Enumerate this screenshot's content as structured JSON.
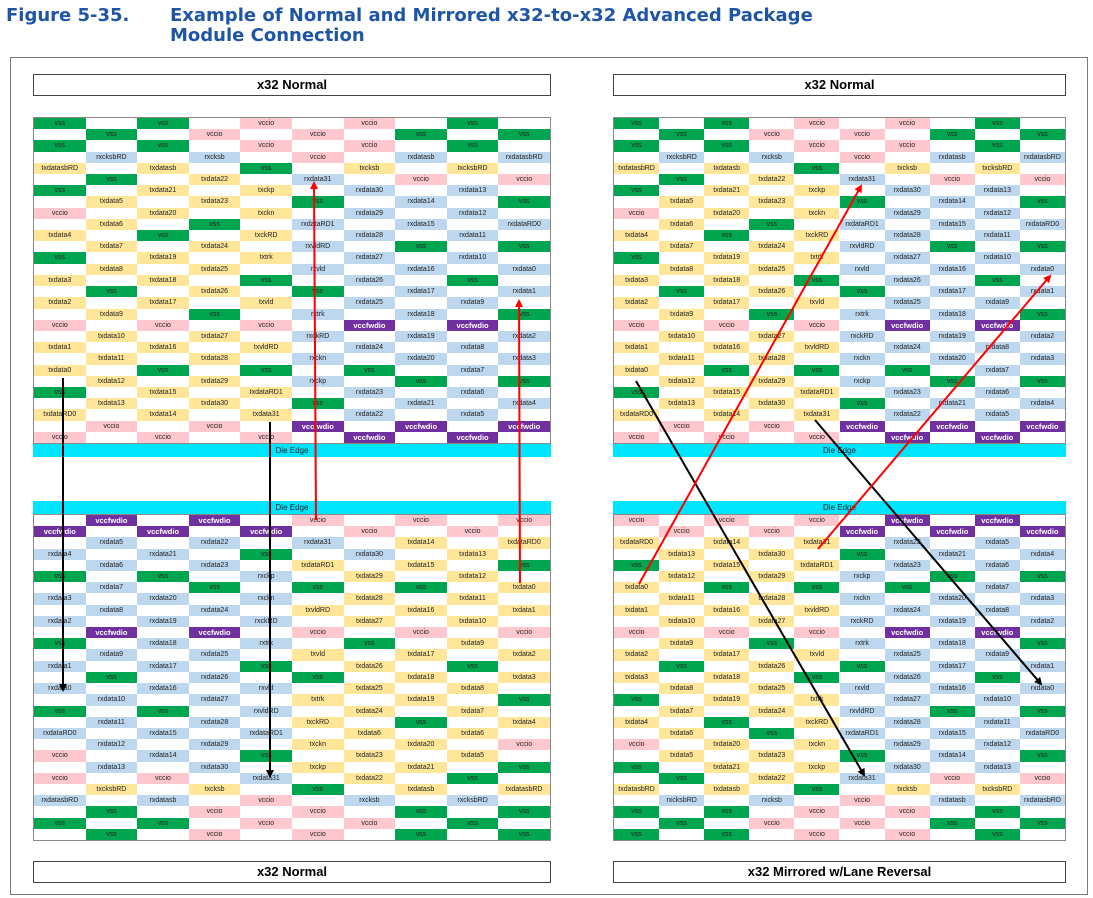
{
  "figure": {
    "number": "Figure 5-35.",
    "title_line1": "Example of Normal and Mirrored x32-to-x32 Advanced Package",
    "title_line2": "Module Connection"
  },
  "panels": {
    "top_left_label": "x32 Normal",
    "top_right_label": "x32 Normal",
    "bottom_left_label": "x32 Normal",
    "bottom_right_label": "x32 Mirrored w/Lane Reversal",
    "die_edge_label": "Die Edge"
  },
  "colors": {
    "vss": "#00a550",
    "vccio": "#ffc7ce",
    "tx": "#ffe699",
    "rx": "#bdd7ee",
    "vccfwdio": "#7030a0",
    "empty": "#ffffff",
    "die_edge": "#00e5ff",
    "arrow_red": "#ff0000",
    "arrow_black": "#000000"
  },
  "grid_top": [
    [
      "vss",
      "",
      "vss",
      "",
      "vccio",
      "",
      "vccio",
      "",
      "vss",
      ""
    ],
    [
      "",
      "vss",
      "",
      "vccio",
      "",
      "vccio",
      "",
      "vss",
      "",
      "vss"
    ],
    [
      "vss",
      "",
      "vss",
      "",
      "vccio",
      "",
      "vccio",
      "",
      "vss",
      ""
    ],
    [
      "",
      "rxcksbRD",
      "",
      "rxcksb",
      "",
      "vccio",
      "",
      "rxdatasb",
      "",
      "rxdatasbRD"
    ],
    [
      "txdatasbRD",
      "",
      "txdatasb",
      "",
      "vss",
      "",
      "txcksb",
      "",
      "txcksbRD",
      ""
    ],
    [
      "",
      "vss",
      "",
      "txdata22",
      "",
      "rxdata31",
      "",
      "vccio",
      "",
      "vccio"
    ],
    [
      "vss",
      "",
      "txdata21",
      "",
      "txckp",
      "",
      "rxdata30",
      "",
      "rxdata13",
      ""
    ],
    [
      "",
      "txdata5",
      "",
      "txdata23",
      "",
      "vss",
      "",
      "rxdata14",
      "",
      "vss"
    ],
    [
      "vccio",
      "",
      "txdata20",
      "",
      "txckn",
      "",
      "rxdata29",
      "",
      "rxdata12",
      ""
    ],
    [
      "",
      "txdata6",
      "",
      "vss",
      "",
      "rxdataRD1",
      "",
      "rxdata15",
      "",
      "rxdataRD0"
    ],
    [
      "txdata4",
      "",
      "vss",
      "",
      "txckRD",
      "",
      "rxdata28",
      "",
      "rxdata11",
      ""
    ],
    [
      "",
      "txdata7",
      "",
      "txdata24",
      "",
      "rxvldRD",
      "",
      "vss",
      "",
      "vss"
    ],
    [
      "vss",
      "",
      "txdata19",
      "",
      "txtrk",
      "",
      "rxdata27",
      "",
      "rxdata10",
      ""
    ],
    [
      "",
      "txdata8",
      "",
      "txdata25",
      "",
      "rxvld",
      "",
      "rxdata16",
      "",
      "rxdata0"
    ],
    [
      "txdata3",
      "",
      "txdata18",
      "",
      "vss",
      "",
      "rxdata26",
      "",
      "vss",
      ""
    ],
    [
      "",
      "vss",
      "",
      "txdata26",
      "",
      "vss",
      "",
      "rxdata17",
      "",
      "rxdata1"
    ],
    [
      "txdata2",
      "",
      "txdata17",
      "",
      "txvld",
      "",
      "rxdata25",
      "",
      "rxdata9",
      ""
    ],
    [
      "",
      "txdata9",
      "",
      "vss",
      "",
      "rxtrk",
      "",
      "rxdata18",
      "",
      "vss"
    ],
    [
      "vccio",
      "",
      "vccio",
      "",
      "vccio",
      "",
      "vccfwdio",
      "",
      "vccfwdio",
      ""
    ],
    [
      "",
      "txdata10",
      "",
      "txdata27",
      "",
      "rxckRD",
      "",
      "rxdata19",
      "",
      "rxdata2"
    ],
    [
      "txdata1",
      "",
      "txdata16",
      "",
      "txvldRD",
      "",
      "rxdata24",
      "",
      "rxdata8",
      ""
    ],
    [
      "",
      "txdata11",
      "",
      "txdata28",
      "",
      "rxckn",
      "",
      "rxdata20",
      "",
      "rxdata3"
    ],
    [
      "txdata0",
      "",
      "vss",
      "",
      "vss",
      "",
      "vss",
      "",
      "rxdata7",
      ""
    ],
    [
      "",
      "txdata12",
      "",
      "txdata29",
      "",
      "rxckp",
      "",
      "vss",
      "",
      "vss"
    ],
    [
      "vss",
      "",
      "txdata15",
      "",
      "txdataRD1",
      "",
      "rxdata23",
      "",
      "rxdata6",
      ""
    ],
    [
      "",
      "txdata13",
      "",
      "txdata30",
      "",
      "vss",
      "",
      "rxdata21",
      "",
      "rxdata4"
    ],
    [
      "txdataRD0",
      "",
      "txdata14",
      "",
      "txdata31",
      "",
      "rxdata22",
      "",
      "rxdata5",
      ""
    ],
    [
      "",
      "vccio",
      "",
      "vccio",
      "",
      "vccfwdio",
      "",
      "vccfwdio",
      "",
      "vccfwdio"
    ],
    [
      "vccio",
      "",
      "vccio",
      "",
      "vccio",
      "",
      "vccfwdio",
      "",
      "vccfwdio",
      ""
    ]
  ],
  "grid_bottom_left": [
    [
      "",
      "vccfwdio",
      "",
      "vccfwdio",
      "",
      "vccio",
      "",
      "vccio",
      "",
      "vccio"
    ],
    [
      "vccfwdio",
      "",
      "vccfwdio",
      "",
      "vccfwdio",
      "",
      "vccio",
      "",
      "vccio",
      ""
    ],
    [
      "",
      "rxdata5",
      "",
      "rxdata22",
      "",
      "rxdata31",
      "",
      "txdata14",
      "",
      "txdataRD0"
    ],
    [
      "rxdata4",
      "",
      "rxdata21",
      "",
      "vss",
      "",
      "rxdata30",
      "",
      "txdata13",
      ""
    ],
    [
      "",
      "rxdata6",
      "",
      "rxdata23",
      "",
      "txdataRD1",
      "",
      "txdata15",
      "",
      "vss"
    ],
    [
      "vss",
      "",
      "vss",
      "",
      "rxckp",
      "",
      "txdata29",
      "",
      "txdata12",
      ""
    ],
    [
      "",
      "rxdata7",
      "",
      "vss",
      "",
      "vss",
      "",
      "vss",
      "",
      "txdata0"
    ],
    [
      "rxdata3",
      "",
      "rxdata20",
      "",
      "rxckn",
      "",
      "txdata28",
      "",
      "txdata11",
      ""
    ],
    [
      "",
      "rxdata8",
      "",
      "rxdata24",
      "",
      "txvldRD",
      "",
      "txdata16",
      "",
      "txdata1"
    ],
    [
      "rxdata2",
      "",
      "rxdata19",
      "",
      "rxckRD",
      "",
      "txdata27",
      "",
      "txdata10",
      ""
    ],
    [
      "",
      "vccfwdio",
      "",
      "vccfwdio",
      "",
      "vccio",
      "",
      "vccio",
      "",
      "vccio"
    ],
    [
      "vss",
      "",
      "rxdata18",
      "",
      "rxtrk",
      "",
      "vss",
      "",
      "txdata9",
      ""
    ],
    [
      "",
      "rxdata9",
      "",
      "rxdata25",
      "",
      "txvld",
      "",
      "txdata17",
      "",
      "txdata2"
    ],
    [
      "rxdata1",
      "",
      "rxdata17",
      "",
      "vss",
      "",
      "txdata26",
      "",
      "vss",
      ""
    ],
    [
      "",
      "vss",
      "",
      "rxdata26",
      "",
      "vss",
      "",
      "txdata18",
      "",
      "txdata3"
    ],
    [
      "rxdata0",
      "",
      "rxdata16",
      "",
      "rxvld",
      "",
      "txdata25",
      "",
      "txdata8",
      ""
    ],
    [
      "",
      "rxdata10",
      "",
      "rxdata27",
      "",
      "txtrk",
      "",
      "txdata19",
      "",
      "vss"
    ],
    [
      "vss",
      "",
      "vss",
      "",
      "rxvldRD",
      "",
      "txdata24",
      "",
      "txdata7",
      ""
    ],
    [
      "",
      "rxdata11",
      "",
      "rxdata28",
      "",
      "txckRD",
      "",
      "vss",
      "",
      "txdata4"
    ],
    [
      "rxdataRD0",
      "",
      "rxdata15",
      "",
      "rxdataRD1",
      "",
      "txdata6",
      "",
      "txdata6",
      ""
    ],
    [
      "",
      "rxdata12",
      "",
      "rxdata29",
      "",
      "txckn",
      "",
      "txdata20",
      "",
      "vccio"
    ],
    [
      "vccio",
      "",
      "rxdata14",
      "",
      "vss",
      "",
      "txdata23",
      "",
      "txdata5",
      ""
    ],
    [
      "",
      "rxdata13",
      "",
      "rxdata30",
      "",
      "txckp",
      "",
      "txdata21",
      "",
      "vss"
    ],
    [
      "vccio",
      "",
      "vccio",
      "",
      "rxdata31",
      "",
      "txdata22",
      "",
      "vss",
      ""
    ],
    [
      "",
      "txcksbRD",
      "",
      "txcksb",
      "",
      "vss",
      "",
      "txdatasb",
      "",
      "txdatasbRD"
    ],
    [
      "rxdatasbRD",
      "",
      "rxdatasb",
      "",
      "vccio",
      "",
      "rxcksb",
      "",
      "rxcksbRD",
      ""
    ],
    [
      "",
      "vss",
      "",
      "vccio",
      "",
      "vccio",
      "",
      "vss",
      "",
      "vss"
    ],
    [
      "vss",
      "",
      "vss",
      "",
      "vccio",
      "",
      "vccio",
      "",
      "vss",
      ""
    ],
    [
      "",
      "vss",
      "",
      "vccio",
      "",
      "vccio",
      "",
      "vss",
      "",
      "vss"
    ]
  ],
  "grid_bottom_right": [
    [
      "vccio",
      "",
      "vccio",
      "",
      "vccio",
      "",
      "vccfwdio",
      "",
      "vccfwdio",
      ""
    ],
    [
      "",
      "vccio",
      "",
      "vccio",
      "",
      "vccfwdio",
      "",
      "vccfwdio",
      "",
      "vccfwdio"
    ],
    [
      "txdataRD0",
      "",
      "txdata14",
      "",
      "txdata31",
      "",
      "rxdata22",
      "",
      "rxdata5",
      ""
    ],
    [
      "",
      "txdata13",
      "",
      "txdata30",
      "",
      "vss",
      "",
      "rxdata21",
      "",
      "rxdata4"
    ],
    [
      "vss",
      "",
      "txdata15",
      "",
      "txdataRD1",
      "",
      "rxdata23",
      "",
      "rxdata6",
      ""
    ],
    [
      "",
      "txdata12",
      "",
      "txdata29",
      "",
      "rxckp",
      "",
      "vss",
      "",
      "vss"
    ],
    [
      "txdata0",
      "",
      "vss",
      "",
      "vss",
      "",
      "vss",
      "",
      "rxdata7",
      ""
    ],
    [
      "",
      "txdata11",
      "",
      "txdata28",
      "",
      "rxckn",
      "",
      "rxdata20",
      "",
      "rxdata3"
    ],
    [
      "txdata1",
      "",
      "txdata16",
      "",
      "txvldRD",
      "",
      "rxdata24",
      "",
      "rxdata8",
      ""
    ],
    [
      "",
      "txdata10",
      "",
      "txdata27",
      "",
      "rxckRD",
      "",
      "rxdata19",
      "",
      "rxdata2"
    ],
    [
      "vccio",
      "",
      "vccio",
      "",
      "vccio",
      "",
      "vccfwdio",
      "",
      "vccfwdio",
      ""
    ],
    [
      "",
      "txdata9",
      "",
      "vss",
      "",
      "rxtrk",
      "",
      "rxdata18",
      "",
      "vss"
    ],
    [
      "txdata2",
      "",
      "txdata17",
      "",
      "txvld",
      "",
      "rxdata25",
      "",
      "rxdata9",
      ""
    ],
    [
      "",
      "vss",
      "",
      "txdata26",
      "",
      "vss",
      "",
      "rxdata17",
      "",
      "rxdata1"
    ],
    [
      "txdata3",
      "",
      "txdata18",
      "",
      "vss",
      "",
      "rxdata26",
      "",
      "vss",
      ""
    ],
    [
      "",
      "txdata8",
      "",
      "txdata25",
      "",
      "rxvld",
      "",
      "rxdata16",
      "",
      "rxdata0"
    ],
    [
      "vss",
      "",
      "txdata19",
      "",
      "txtrk",
      "",
      "rxdata27",
      "",
      "rxdata10",
      ""
    ],
    [
      "",
      "txdata7",
      "",
      "txdata24",
      "",
      "rxvldRD",
      "",
      "vss",
      "",
      "vss"
    ],
    [
      "txdata4",
      "",
      "vss",
      "",
      "txckRD",
      "",
      "rxdata28",
      "",
      "rxdata11",
      ""
    ],
    [
      "",
      "txdata6",
      "",
      "vss",
      "",
      "rxdataRD1",
      "",
      "rxdata15",
      "",
      "rxdataRD0"
    ],
    [
      "vccio",
      "",
      "txdata20",
      "",
      "txckn",
      "",
      "rxdata29",
      "",
      "rxdata12",
      ""
    ],
    [
      "",
      "txdata5",
      "",
      "txdata23",
      "",
      "vss",
      "",
      "rxdata14",
      "",
      "vss"
    ],
    [
      "vss",
      "",
      "txdata21",
      "",
      "txckp",
      "",
      "rxdata30",
      "",
      "rxdata13",
      ""
    ],
    [
      "",
      "vss",
      "",
      "txdata22",
      "",
      "rxdata31",
      "",
      "vccio",
      "",
      "vccio"
    ],
    [
      "txdatasbRD",
      "",
      "txdatasb",
      "",
      "vss",
      "",
      "txcksb",
      "",
      "txcksbRD",
      ""
    ],
    [
      "",
      "rxcksbRD",
      "",
      "rxcksb",
      "",
      "vccio",
      "",
      "rxdatasb",
      "",
      "rxdatasbRD"
    ],
    [
      "vss",
      "",
      "vss",
      "",
      "vccio",
      "",
      "vccio",
      "",
      "vss",
      ""
    ],
    [
      "",
      "vss",
      "",
      "vccio",
      "",
      "vccio",
      "",
      "vss",
      "",
      "vss"
    ],
    [
      "vss",
      "",
      "vss",
      "",
      "vccio",
      "",
      "vccio",
      "",
      "vss",
      ""
    ]
  ]
}
